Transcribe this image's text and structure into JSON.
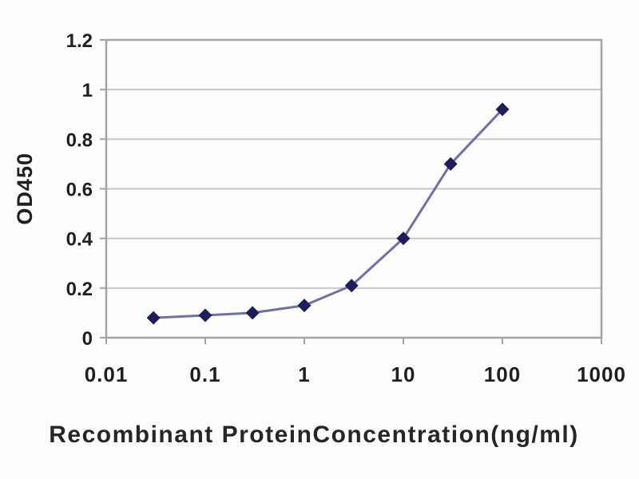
{
  "chart_data": {
    "type": "line",
    "title": "",
    "xlabel": "Recombinant ProteinConcentration(ng/ml)",
    "ylabel": "OD450",
    "x_scale": "log",
    "xlim": [
      0.01,
      1000
    ],
    "ylim": [
      0,
      1.2
    ],
    "x_ticks": [
      0.01,
      0.1,
      1,
      10,
      100,
      1000
    ],
    "x_tick_labels": [
      "0.01",
      "0.1",
      "1",
      "10",
      "100",
      "1000"
    ],
    "y_ticks": [
      0,
      0.2,
      0.4,
      0.6,
      0.8,
      1,
      1.2
    ],
    "y_tick_labels": [
      "0",
      "0.2",
      "0.4",
      "0.6",
      "0.8",
      "1",
      "1.2"
    ],
    "grid": "horizontal",
    "legend": "none",
    "series": [
      {
        "name": "OD450",
        "marker": "diamond",
        "x": [
          0.03,
          0.1,
          0.3,
          1,
          3,
          10,
          30,
          100
        ],
        "y": [
          0.08,
          0.09,
          0.1,
          0.13,
          0.21,
          0.4,
          0.7,
          0.92
        ]
      }
    ]
  },
  "colors": {
    "background": "#fdfdfd",
    "frame": "#a3a3a3",
    "gridline": "#c7c7c7",
    "tick": "#a3a3a3",
    "text": "#1f1f1f",
    "line": "#6f6fae",
    "marker": "#1e1e5c"
  }
}
